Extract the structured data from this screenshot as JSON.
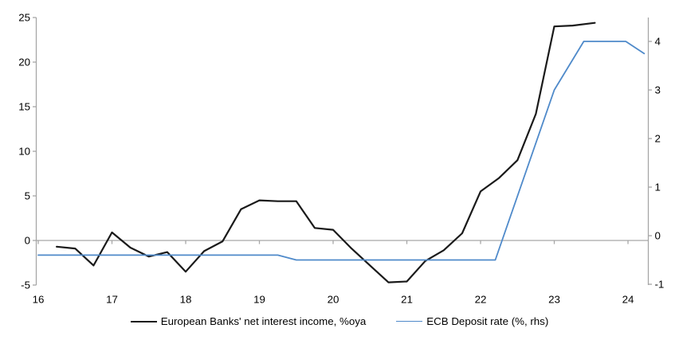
{
  "chart_data": {
    "type": "line",
    "title": "",
    "xlabel": "",
    "ylabel_left": "",
    "ylabel_right": "",
    "x_axis": {
      "tick_labels": [
        16,
        17,
        18,
        19,
        20,
        21,
        22,
        23,
        24
      ],
      "range": [
        15.97,
        24.3
      ]
    },
    "left_axis": {
      "tick_labels": [
        25,
        20,
        15,
        10,
        5,
        0,
        "-5"
      ],
      "tick_values": [
        25,
        20,
        15,
        10,
        5,
        0,
        -5
      ],
      "range": [
        -5,
        25
      ]
    },
    "right_axis": {
      "tick_labels": [
        4,
        3,
        2,
        1,
        0,
        "-1"
      ],
      "tick_values": [
        4,
        3,
        2,
        1,
        0,
        -1
      ],
      "range": [
        -1,
        4.5
      ]
    },
    "grid": "zero-line-only",
    "legend_position": "bottom",
    "colors": {
      "series1": "#1a1a1a",
      "series2": "#4f8aca",
      "axis": "#a6a6a6",
      "text": "#000000"
    },
    "series": [
      {
        "name": "European Banks' net interest income, %oya",
        "axis": "left",
        "color": "#1a1a1a",
        "x": [
          16.25,
          16.5,
          16.75,
          17.0,
          17.25,
          17.5,
          17.75,
          18.0,
          18.25,
          18.5,
          18.75,
          19.0,
          19.25,
          19.5,
          19.75,
          20.0,
          20.25,
          20.5,
          20.75,
          21.0,
          21.25,
          21.5,
          21.75,
          22.0,
          22.25,
          22.5,
          22.75,
          23.0,
          23.25,
          23.55
        ],
        "values": [
          -0.7,
          -0.9,
          -2.8,
          0.9,
          -0.8,
          -1.8,
          -1.3,
          -3.5,
          -1.2,
          -0.1,
          3.5,
          4.5,
          4.4,
          4.4,
          1.4,
          1.2,
          -0.9,
          -2.8,
          -4.7,
          -4.6,
          -2.3,
          -1.1,
          0.8,
          5.5,
          7.0,
          9.0,
          14.2,
          24.0,
          24.1,
          24.4
        ]
      },
      {
        "name": "ECB Deposit rate (%, rhs)",
        "axis": "right",
        "color": "#4f8aca",
        "x": [
          16.0,
          19.25,
          19.5,
          22.2,
          23.0,
          23.4,
          23.97,
          24.22
        ],
        "values": [
          -0.4,
          -0.4,
          -0.5,
          -0.5,
          3.0,
          4.0,
          4.0,
          3.75
        ]
      }
    ]
  }
}
